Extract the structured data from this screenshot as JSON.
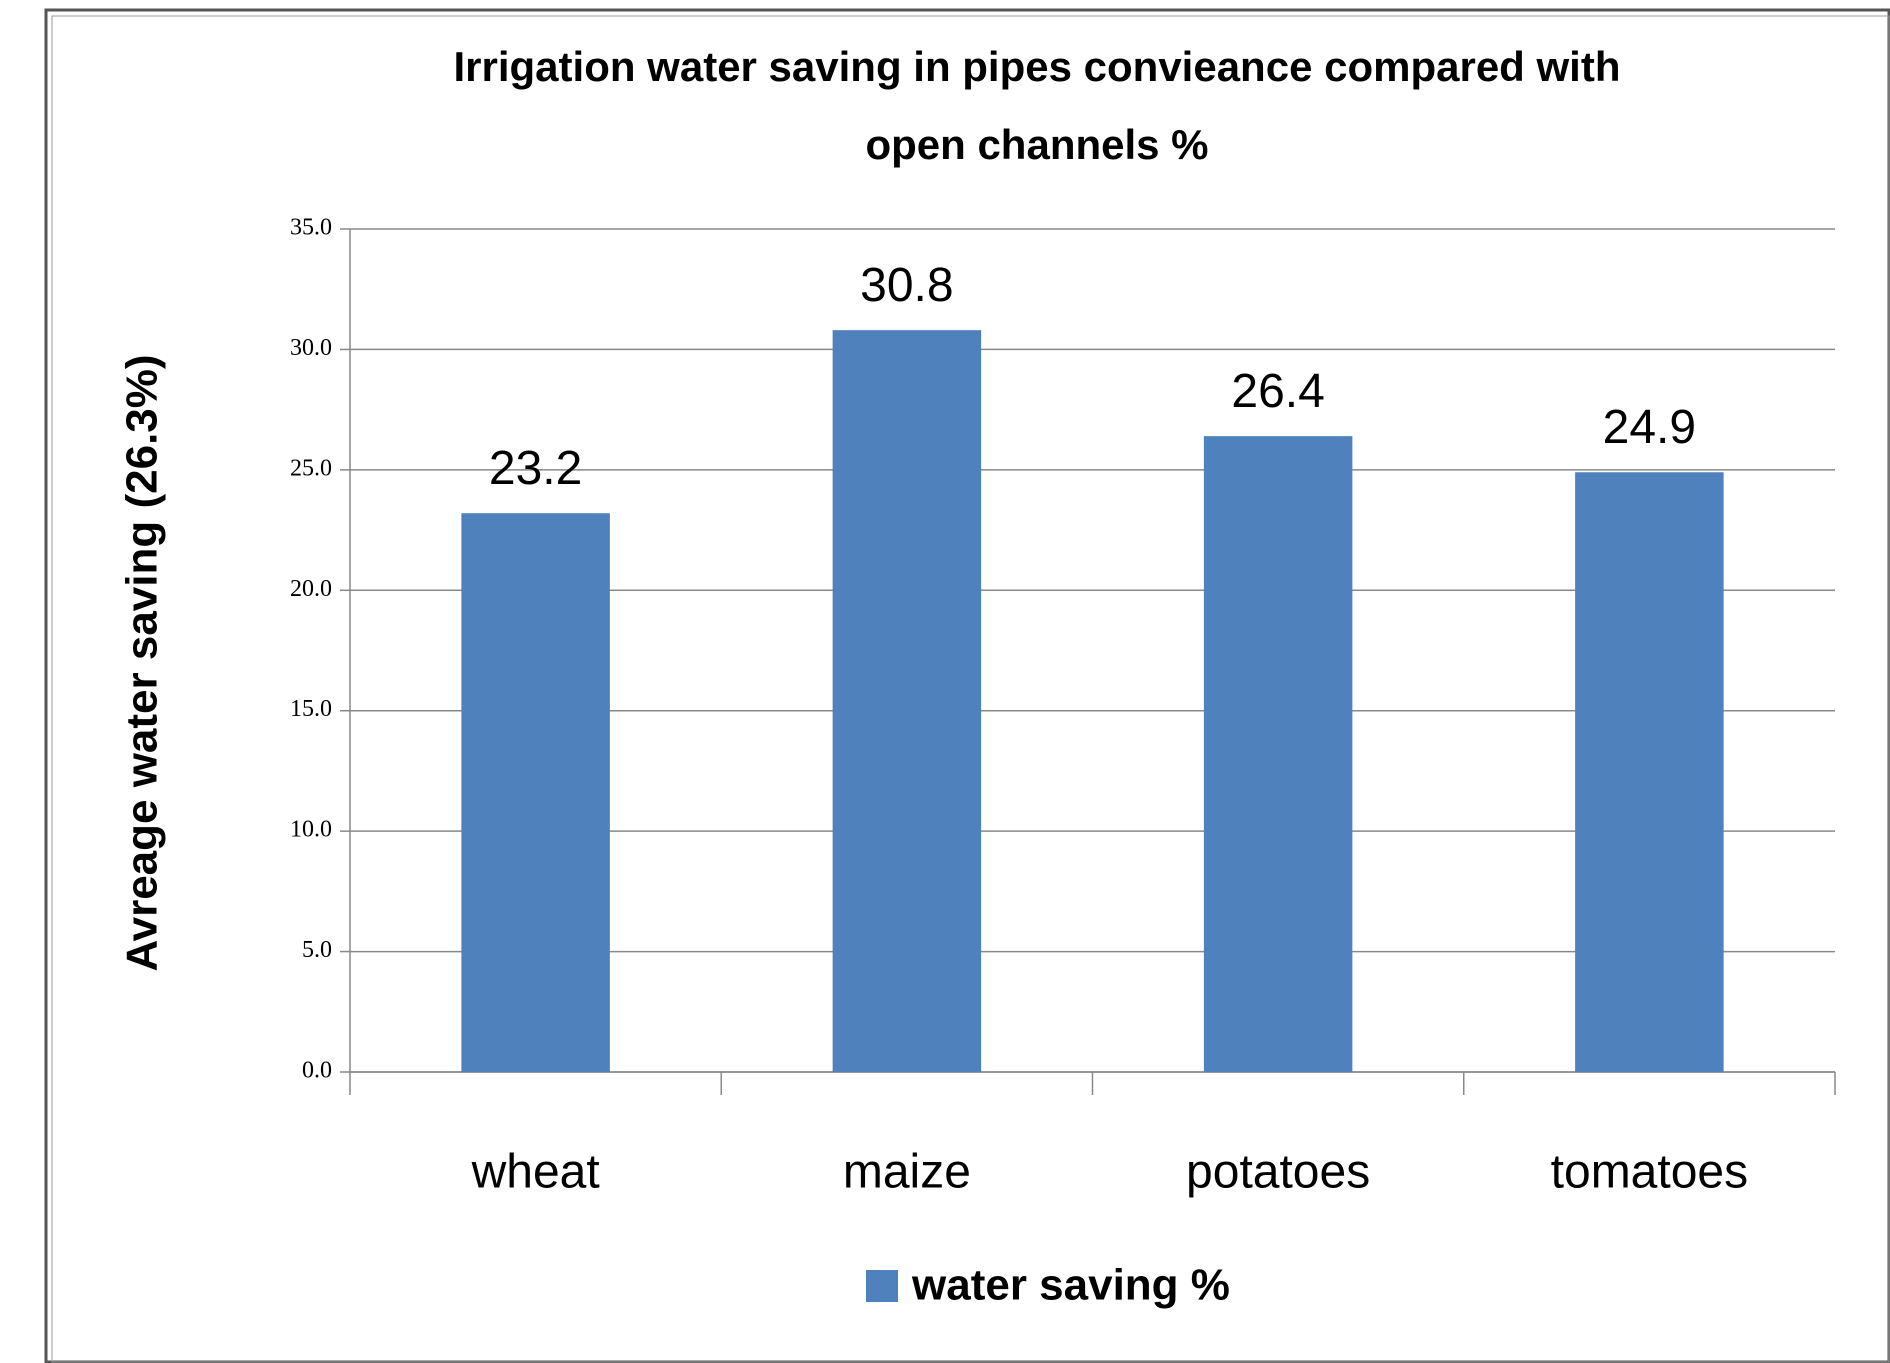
{
  "chart_data": {
    "type": "bar",
    "title": [
      "Irrigation water saving  in pipes convieance compared with",
      "open channels %"
    ],
    "y_label": "Avreage water saving (26.3%)",
    "categories": [
      "wheat",
      "maize",
      "potatoes",
      "tomatoes"
    ],
    "series": [
      {
        "name": "water saving %",
        "color": "#4f81bd",
        "values": [
          23.2,
          30.8,
          26.4,
          24.9
        ]
      }
    ],
    "ylim": [
      0,
      35
    ],
    "yticks": [
      {
        "value": 0,
        "label": "0.0"
      },
      {
        "value": 5,
        "label": "5.0"
      },
      {
        "value": 10,
        "label": "10.0"
      },
      {
        "value": 15,
        "label": "15.0"
      },
      {
        "value": 20,
        "label": "20.0"
      },
      {
        "value": 25,
        "label": "25.0"
      },
      {
        "value": 30,
        "label": "30.0"
      },
      {
        "value": 35,
        "label": "35.0"
      }
    ],
    "grid": true,
    "legend": "bottom"
  }
}
